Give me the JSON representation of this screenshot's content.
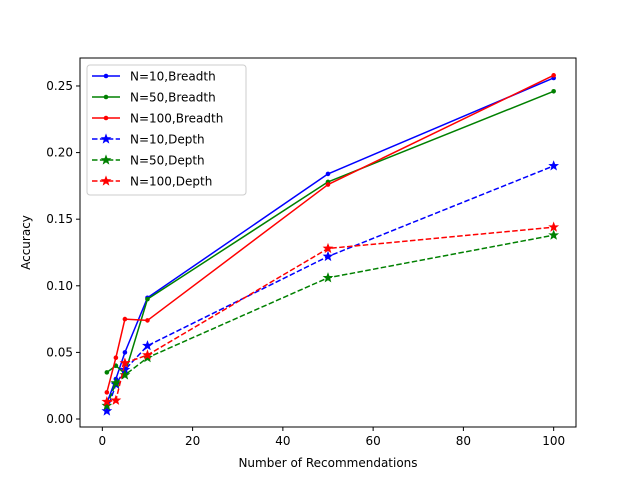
{
  "chart_data": {
    "type": "line",
    "xlabel": "Number of Recommendations",
    "ylabel": "Accuracy",
    "xlim": [
      -4.95,
      104.95
    ],
    "ylim": [
      -0.006,
      0.271
    ],
    "xticks": [
      0,
      20,
      40,
      60,
      80,
      100
    ],
    "yticks": [
      0.0,
      0.05,
      0.1,
      0.15,
      0.2,
      0.25
    ],
    "xtick_labels": [
      "0",
      "20",
      "40",
      "60",
      "80",
      "100"
    ],
    "ytick_labels": [
      "0.00",
      "0.05",
      "0.10",
      "0.15",
      "0.20",
      "0.25"
    ],
    "legend_position": "top-left",
    "grid": false,
    "x": [
      1,
      3,
      5,
      10,
      50,
      100
    ],
    "series": [
      {
        "name": "N=10,Breadth",
        "color": "#0000ff",
        "linestyle": "solid",
        "marker": "dot",
        "values": [
          0.012,
          0.03,
          0.05,
          0.091,
          0.184,
          0.256
        ]
      },
      {
        "name": "N=50,Breadth",
        "color": "#008000",
        "linestyle": "solid",
        "marker": "dot",
        "values": [
          0.035,
          0.04,
          0.034,
          0.09,
          0.178,
          0.246
        ]
      },
      {
        "name": "N=100,Breadth",
        "color": "#ff0000",
        "linestyle": "solid",
        "marker": "dot",
        "values": [
          0.02,
          0.046,
          0.075,
          0.074,
          0.176,
          0.258
        ]
      },
      {
        "name": "N=10,Depth",
        "color": "#0000ff",
        "linestyle": "dashed",
        "marker": "star",
        "values": [
          0.006,
          0.026,
          0.037,
          0.055,
          0.122,
          0.19
        ]
      },
      {
        "name": "N=50,Depth",
        "color": "#008000",
        "linestyle": "dashed",
        "marker": "star",
        "values": [
          0.01,
          0.027,
          0.033,
          0.046,
          0.106,
          0.138
        ]
      },
      {
        "name": "N=100,Depth",
        "color": "#ff0000",
        "linestyle": "dashed",
        "marker": "star",
        "values": [
          0.013,
          0.014,
          0.042,
          0.048,
          0.128,
          0.144
        ]
      }
    ]
  }
}
